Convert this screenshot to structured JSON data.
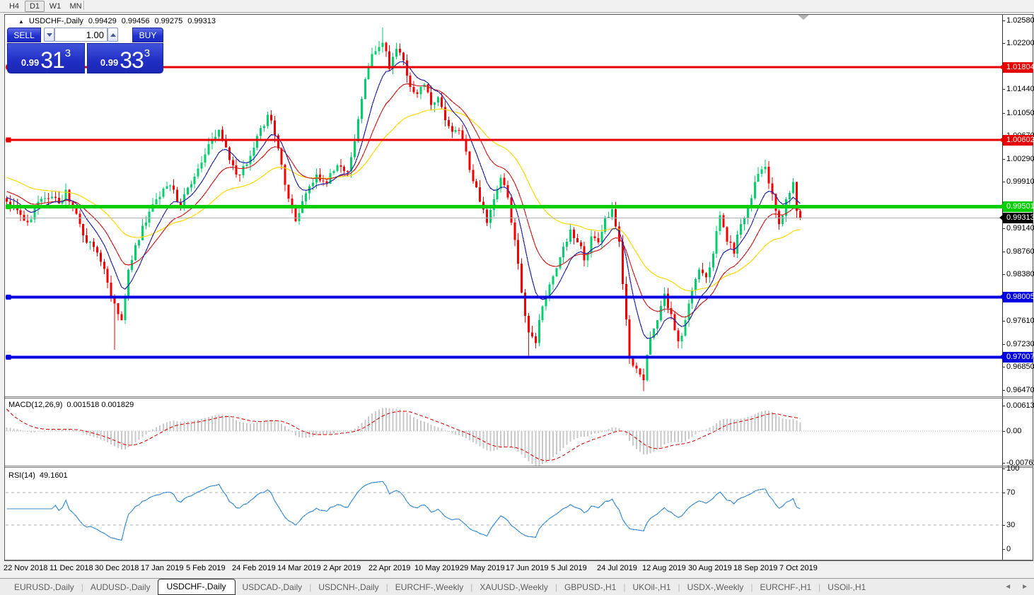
{
  "toolbar": {
    "timeframes": [
      {
        "label": "H4",
        "active": false
      },
      {
        "label": "D1",
        "active": true
      },
      {
        "label": "W1",
        "active": false
      },
      {
        "label": "MN",
        "active": false
      }
    ]
  },
  "symbol_header": {
    "collapse_icon": "triangle-up",
    "title": "USDCHF-,Daily",
    "open": "0.99429",
    "high": "0.99456",
    "low": "0.99275",
    "close": "0.99313"
  },
  "trade_panel": {
    "sell_label": "SELL",
    "buy_label": "BUY",
    "volume": "1.00",
    "sell_price_prefix": "0.99",
    "sell_price_big": "31",
    "sell_price_sup": "3",
    "buy_price_prefix": "0.99",
    "buy_price_big": "33",
    "buy_price_sup": "3",
    "panel_blue": "#2134cf"
  },
  "chart_data": {
    "type": "candlestick",
    "title": "USDCHF-,Daily",
    "x_labels": [
      "22 Nov 2018",
      "11 Dec 2018",
      "30 Dec 2018",
      "17 Jan 2019",
      "5 Feb 2019",
      "24 Feb 2019",
      "14 Mar 2019",
      "2 Apr 2019",
      "22 Apr 2019",
      "10 May 2019",
      "29 May 2019",
      "17 Jun 2019",
      "5 Jul 2019",
      "24 Jul 2019",
      "12 Aug 2019",
      "30 Aug 2019",
      "18 Sep 2019",
      "7 Oct 2019"
    ],
    "price_axis_ticks": [
      "1.02580",
      "1.02200",
      "1.01440",
      "1.01050",
      "1.00670",
      "1.00290",
      "0.99910",
      "0.99140",
      "0.98760",
      "0.98380",
      "0.97610",
      "0.97230",
      "0.96850",
      "0.96470"
    ],
    "price_range": {
      "top": 1.0266,
      "bottom": 0.9636
    },
    "candle_count": 229,
    "close_path_anchors": [
      [
        0,
        0.9958
      ],
      [
        3,
        0.9944
      ],
      [
        6,
        0.9924
      ],
      [
        9,
        0.9958
      ],
      [
        12,
        0.9964
      ],
      [
        15,
        0.9955
      ],
      [
        17,
        0.9978
      ],
      [
        20,
        0.9938
      ],
      [
        23,
        0.989
      ],
      [
        26,
        0.9874
      ],
      [
        29,
        0.9824
      ],
      [
        31,
        0.979
      ],
      [
        33,
        0.9762
      ],
      [
        35,
        0.9845
      ],
      [
        39,
        0.9918
      ],
      [
        43,
        0.9962
      ],
      [
        47,
        0.9985
      ],
      [
        50,
        0.9952
      ],
      [
        53,
        0.9987
      ],
      [
        56,
        1.0023
      ],
      [
        59,
        1.0062
      ],
      [
        61,
        1.0077
      ],
      [
        64,
        1.0027
      ],
      [
        67,
        1.0002
      ],
      [
        70,
        1.0034
      ],
      [
        73,
        1.008
      ],
      [
        75,
        1.0102
      ],
      [
        77,
        1.0068
      ],
      [
        80,
        0.9986
      ],
      [
        83,
        0.9926
      ],
      [
        86,
        0.9972
      ],
      [
        89,
        1.0003
      ],
      [
        92,
        0.9988
      ],
      [
        95,
        1.0018
      ],
      [
        98,
        1.0008
      ],
      [
        100,
        1.0058
      ],
      [
        102,
        1.0128
      ],
      [
        104,
        1.0181
      ],
      [
        106,
        1.0207
      ],
      [
        108,
        1.0221
      ],
      [
        110,
        1.0178
      ],
      [
        112,
        1.0211
      ],
      [
        114,
        1.0192
      ],
      [
        116,
        1.0148
      ],
      [
        118,
        1.0136
      ],
      [
        120,
        1.0152
      ],
      [
        122,
        1.0118
      ],
      [
        124,
        1.0131
      ],
      [
        127,
        1.0083
      ],
      [
        130,
        1.0076
      ],
      [
        132,
        1.0041
      ],
      [
        134,
        0.9992
      ],
      [
        136,
        0.9958
      ],
      [
        138,
        0.9923
      ],
      [
        140,
        0.9962
      ],
      [
        142,
        0.9998
      ],
      [
        144,
        0.9965
      ],
      [
        146,
        0.9895
      ],
      [
        148,
        0.9808
      ],
      [
        150,
        0.9742
      ],
      [
        152,
        0.9724
      ],
      [
        154,
        0.9785
      ],
      [
        156,
        0.9821
      ],
      [
        159,
        0.9866
      ],
      [
        162,
        0.9912
      ],
      [
        164,
        0.9891
      ],
      [
        166,
        0.9861
      ],
      [
        168,
        0.9901
      ],
      [
        170,
        0.9891
      ],
      [
        172,
        0.9932
      ],
      [
        174,
        0.9946
      ],
      [
        176,
        0.9892
      ],
      [
        177,
        0.9822
      ],
      [
        179,
        0.9701
      ],
      [
        181,
        0.9682
      ],
      [
        183,
        0.9663
      ],
      [
        185,
        0.9733
      ],
      [
        187,
        0.9762
      ],
      [
        189,
        0.9806
      ],
      [
        191,
        0.9772
      ],
      [
        193,
        0.9727
      ],
      [
        195,
        0.9762
      ],
      [
        197,
        0.9812
      ],
      [
        199,
        0.9846
      ],
      [
        201,
        0.9833
      ],
      [
        203,
        0.9872
      ],
      [
        205,
        0.9936
      ],
      [
        207,
        0.9892
      ],
      [
        209,
        0.9872
      ],
      [
        211,
        0.9921
      ],
      [
        213,
        0.9948
      ],
      [
        215,
        0.9991
      ],
      [
        217,
        1.0012
      ],
      [
        218,
        1.0016
      ],
      [
        220,
        0.9971
      ],
      [
        222,
        0.9921
      ],
      [
        224,
        0.9962
      ],
      [
        226,
        0.9991
      ],
      [
        227,
        0.9943
      ],
      [
        228,
        0.99313
      ]
    ],
    "special_candles": {
      "31": {
        "low": 0.9713
      },
      "108": {
        "high": 1.0246
      },
      "150": {
        "low": 0.9703
      },
      "183": {
        "low": 0.9645
      },
      "228": {
        "open": 0.99429,
        "high": 0.99456,
        "low": 0.99275,
        "close": 0.99313
      }
    },
    "colors": {
      "up": "#00cf6b",
      "down": "#f30000",
      "ma_fast": "#2727ab",
      "ma_mid": "#cc2222",
      "ma_slow": "#ffd900",
      "macd_hist": "#c9c9c9",
      "macd_signal": "#e00000",
      "rsi_line": "#3c8fd6",
      "level_dash": "#b0b0b0",
      "current_line": "#b0b0b0"
    },
    "moving_averages": [
      {
        "period": 42,
        "color_key": "ma_slow"
      },
      {
        "period": 19,
        "color_key": "ma_mid"
      },
      {
        "period": 9,
        "color_key": "ma_fast"
      }
    ],
    "hlines": [
      {
        "price": 1.01804,
        "label": "1.01804",
        "color": "#e60000",
        "width": 3
      },
      {
        "price": 1.00602,
        "label": "1.00602",
        "color": "#e60000",
        "width": 3
      },
      {
        "price": 0.99501,
        "label": "0.99501",
        "color": "#00ce00",
        "width": 5
      },
      {
        "price": 0.98005,
        "label": "0.98005",
        "color": "#0000e0",
        "width": 4
      },
      {
        "price": 0.97007,
        "label": "0.97007",
        "color": "#0000e0",
        "width": 4
      }
    ],
    "current_price": {
      "value": 0.99313,
      "label": "0.99313",
      "label_bg": "#000000"
    },
    "macd": {
      "name": "MACD(12,26,9)",
      "values_text": "0.001518 0.001829",
      "fast": 12,
      "slow": 26,
      "signal": 9,
      "axis_ticks": [
        {
          "v": 0.00613,
          "label": "0.00613"
        },
        {
          "v": 0,
          "label": "0.00"
        },
        {
          "v": -0.00761,
          "label": "-0.00761"
        }
      ]
    },
    "rsi": {
      "name": "RSI(14)",
      "value_text": "49.1601",
      "period": 14,
      "levels": [
        70,
        30
      ],
      "axis_ticks": [
        {
          "v": 100,
          "label": "100"
        },
        {
          "v": 70,
          "label": "70"
        },
        {
          "v": 30,
          "label": "30"
        },
        {
          "v": 0,
          "label": "0"
        }
      ]
    }
  },
  "tab_bar": {
    "tabs": [
      {
        "label": "EURUSD-,Daily",
        "active": false
      },
      {
        "label": "AUDUSD-,Daily",
        "active": false
      },
      {
        "label": "USDCHF-,Daily",
        "active": true
      },
      {
        "label": "USDCAD-,Daily",
        "active": false
      },
      {
        "label": "USDCNH-,Daily",
        "active": false
      },
      {
        "label": "EURCHF-,Weekly",
        "active": false
      },
      {
        "label": "XAUUSD-,Weekly",
        "active": false
      },
      {
        "label": "GBPUSD-,H1",
        "active": false
      },
      {
        "label": "UKOil-,H1",
        "active": false
      },
      {
        "label": "USDX-,Weekly",
        "active": false
      },
      {
        "label": "EURCHF-,H1",
        "active": false
      },
      {
        "label": "USOil-,H1",
        "active": false
      }
    ],
    "scroll_left": "◄",
    "scroll_right": "►"
  }
}
